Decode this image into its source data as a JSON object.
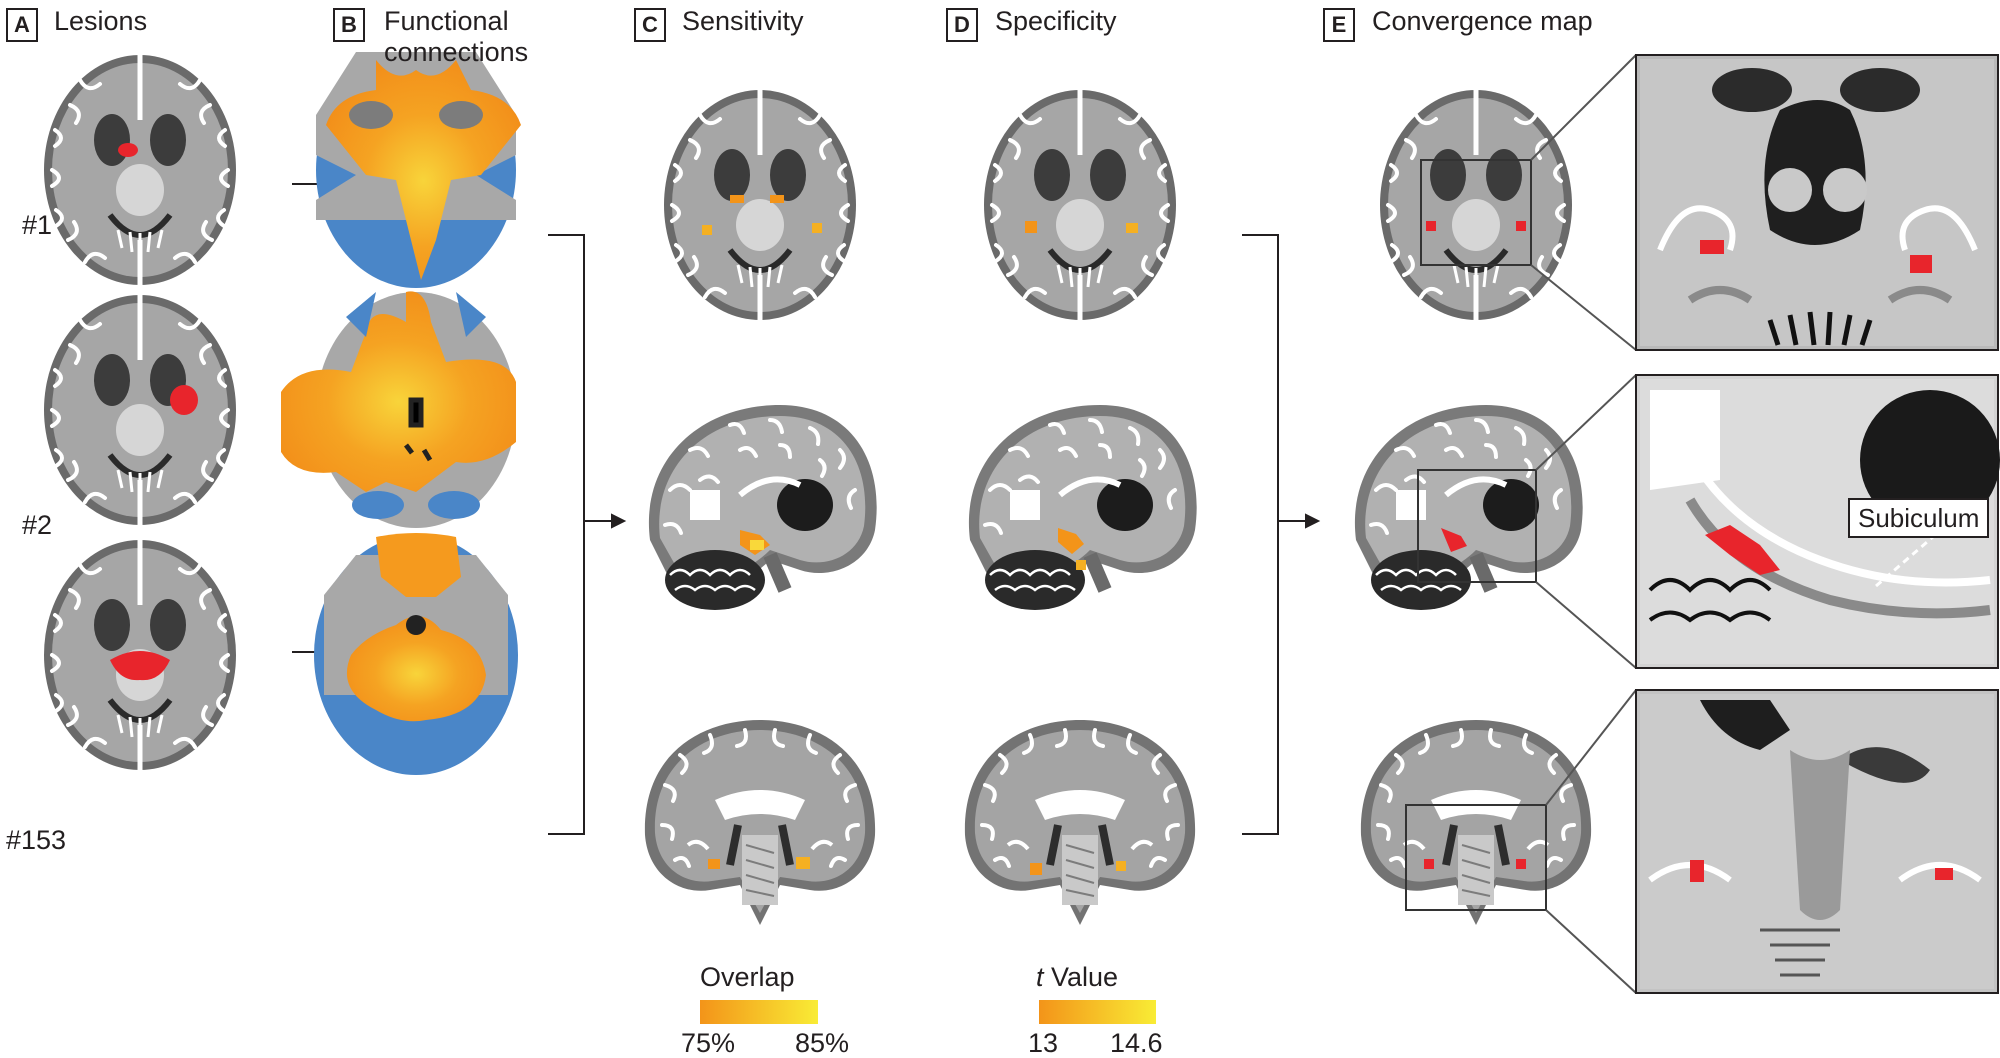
{
  "panels": [
    {
      "letter": "A",
      "title": "Lesions"
    },
    {
      "letter": "B",
      "title": "Functional connections"
    },
    {
      "letter": "C",
      "title": "Sensitivity"
    },
    {
      "letter": "D",
      "title": "Specificity"
    },
    {
      "letter": "E",
      "title": "Convergence map"
    }
  ],
  "rows": [
    "#1",
    "#2",
    "#153"
  ],
  "legends": {
    "overlap": {
      "title": "Overlap",
      "min": "75%",
      "max": "85%"
    },
    "tvalue": {
      "title_italic": "t",
      "title_rest": " Value",
      "min": "13",
      "max": "14.6"
    }
  },
  "inset_label": "Subiculum",
  "colors": {
    "lesion_red": "#e8252c",
    "connection_orange": "#f59a1e",
    "connection_yellow": "#f8d43a",
    "anticorrelation_blue": "#4a86c8",
    "heat_low": "#f39419",
    "heat_high": "#f9ec35",
    "text": "#231f20"
  }
}
